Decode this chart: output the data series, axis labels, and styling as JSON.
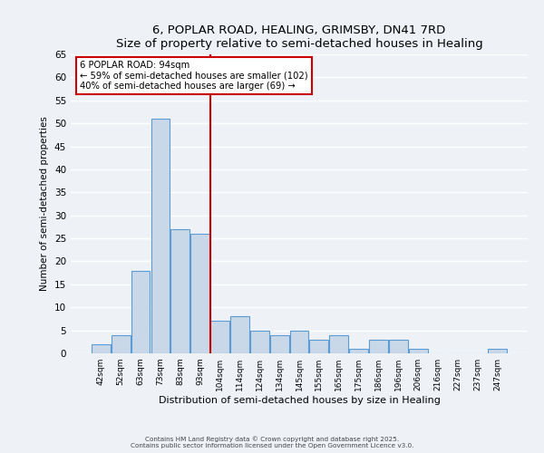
{
  "title": "6, POPLAR ROAD, HEALING, GRIMSBY, DN41 7RD",
  "subtitle": "Size of property relative to semi-detached houses in Healing",
  "xlabel": "Distribution of semi-detached houses by size in Healing",
  "ylabel": "Number of semi-detached properties",
  "bar_labels": [
    "42sqm",
    "52sqm",
    "63sqm",
    "73sqm",
    "83sqm",
    "93sqm",
    "104sqm",
    "114sqm",
    "124sqm",
    "134sqm",
    "145sqm",
    "155sqm",
    "165sqm",
    "175sqm",
    "186sqm",
    "196sqm",
    "206sqm",
    "216sqm",
    "227sqm",
    "237sqm",
    "247sqm"
  ],
  "bar_values": [
    2,
    4,
    18,
    51,
    27,
    26,
    7,
    8,
    5,
    4,
    5,
    3,
    4,
    1,
    3,
    3,
    1,
    0,
    0,
    0,
    1
  ],
  "bar_color": "#c8d8e8",
  "bar_edge_color": "#5b9bd5",
  "ylim": [
    0,
    65
  ],
  "yticks": [
    0,
    5,
    10,
    15,
    20,
    25,
    30,
    35,
    40,
    45,
    50,
    55,
    60,
    65
  ],
  "vline_x": 5.5,
  "vline_color": "#cc0000",
  "annotation_title": "6 POPLAR ROAD: 94sqm",
  "annotation_line1": "← 59% of semi-detached houses are smaller (102)",
  "annotation_line2": "40% of semi-detached houses are larger (69) →",
  "annotation_box_color": "#ffffff",
  "annotation_box_edge": "#cc0000",
  "footer1": "Contains HM Land Registry data © Crown copyright and database right 2025.",
  "footer2": "Contains public sector information licensed under the Open Government Licence v3.0.",
  "bg_color": "#eef2f7",
  "plot_bg_color": "#eef2f7",
  "grid_color": "#ffffff"
}
